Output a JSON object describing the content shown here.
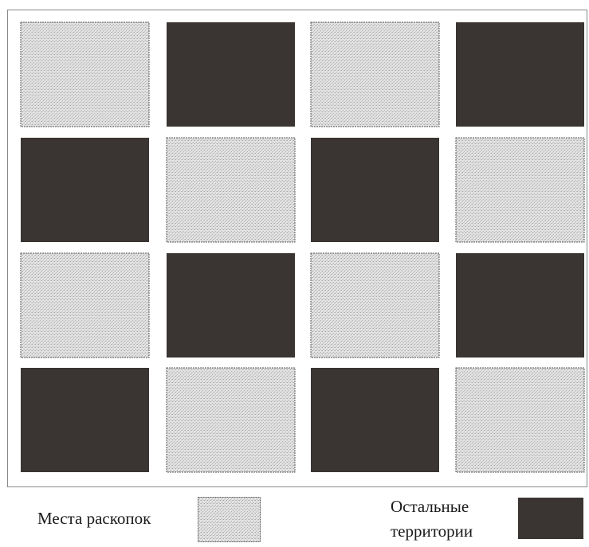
{
  "diagram": {
    "rows": [
      [
        "excavation",
        "other",
        "excavation",
        "other"
      ],
      [
        "other",
        "excavation",
        "other",
        "excavation"
      ],
      [
        "excavation",
        "other",
        "excavation",
        "other"
      ],
      [
        "other",
        "excavation",
        "other",
        "excavation"
      ]
    ],
    "colors": {
      "excavation_fill": "#e2e2e2",
      "excavation_speckle": "#a9a9a9",
      "excavation_border": "#5a5a5a",
      "other_fill": "#3a3532"
    }
  },
  "legend": {
    "excavation_label": "Места раскопок",
    "other_label": "Остальные территории"
  }
}
